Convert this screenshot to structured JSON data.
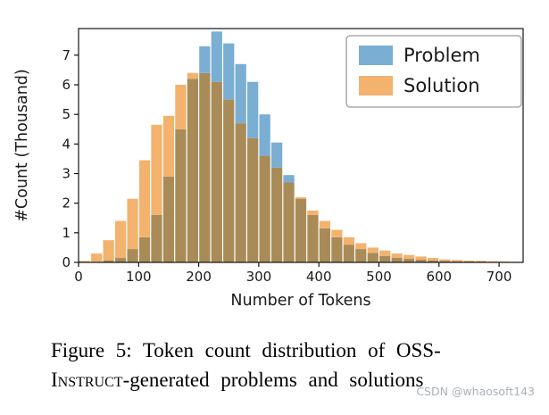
{
  "chart_data": {
    "type": "bar",
    "subtype": "overlapping-histogram",
    "bin_width": 20,
    "bin_start": 0,
    "xlabel": "Number of Tokens",
    "ylabel": "#Count (Thousand)",
    "xlim": [
      0,
      740
    ],
    "ylim": [
      0,
      7.9
    ],
    "xticks": [
      0,
      100,
      200,
      300,
      400,
      500,
      600,
      700
    ],
    "yticks": [
      0,
      1,
      2,
      3,
      4,
      5,
      6,
      7
    ],
    "grid": false,
    "legend": {
      "position": "upper right",
      "entries": [
        "Problem",
        "Solution"
      ]
    },
    "overlap_color": "#a98b58",
    "series": [
      {
        "name": "Problem",
        "color": "#7aaed3",
        "values": [
          0,
          0.02,
          0.06,
          0.15,
          0.45,
          0.85,
          1.6,
          2.9,
          4.5,
          6.2,
          7.3,
          7.8,
          7.4,
          6.7,
          6.1,
          5.0,
          4.05,
          2.95,
          2.15,
          1.6,
          1.15,
          0.85,
          0.6,
          0.45,
          0.32,
          0.22,
          0.16,
          0.12,
          0.09,
          0.07,
          0.05,
          0.04,
          0.03,
          0.03,
          0.02,
          0.02,
          0.01
        ]
      },
      {
        "name": "Solution",
        "color": "#f3b26e",
        "values": [
          0.05,
          0.3,
          0.75,
          1.4,
          2.15,
          3.45,
          4.65,
          4.95,
          6.0,
          6.4,
          6.4,
          6.1,
          5.5,
          4.7,
          4.2,
          3.6,
          3.2,
          2.7,
          2.2,
          1.75,
          1.4,
          1.1,
          0.85,
          0.65,
          0.5,
          0.4,
          0.3,
          0.25,
          0.2,
          0.15,
          0.1,
          0.08,
          0.06,
          0.05,
          0.04,
          0.03,
          0.02
        ]
      }
    ]
  },
  "caption": {
    "line1": "Figure 5: Token count distribution of OSS-",
    "smallcaps_word": "Instruct",
    "line2_rest": "-generated problems and solutions"
  },
  "watermark": "CSDN @whaosoft143"
}
